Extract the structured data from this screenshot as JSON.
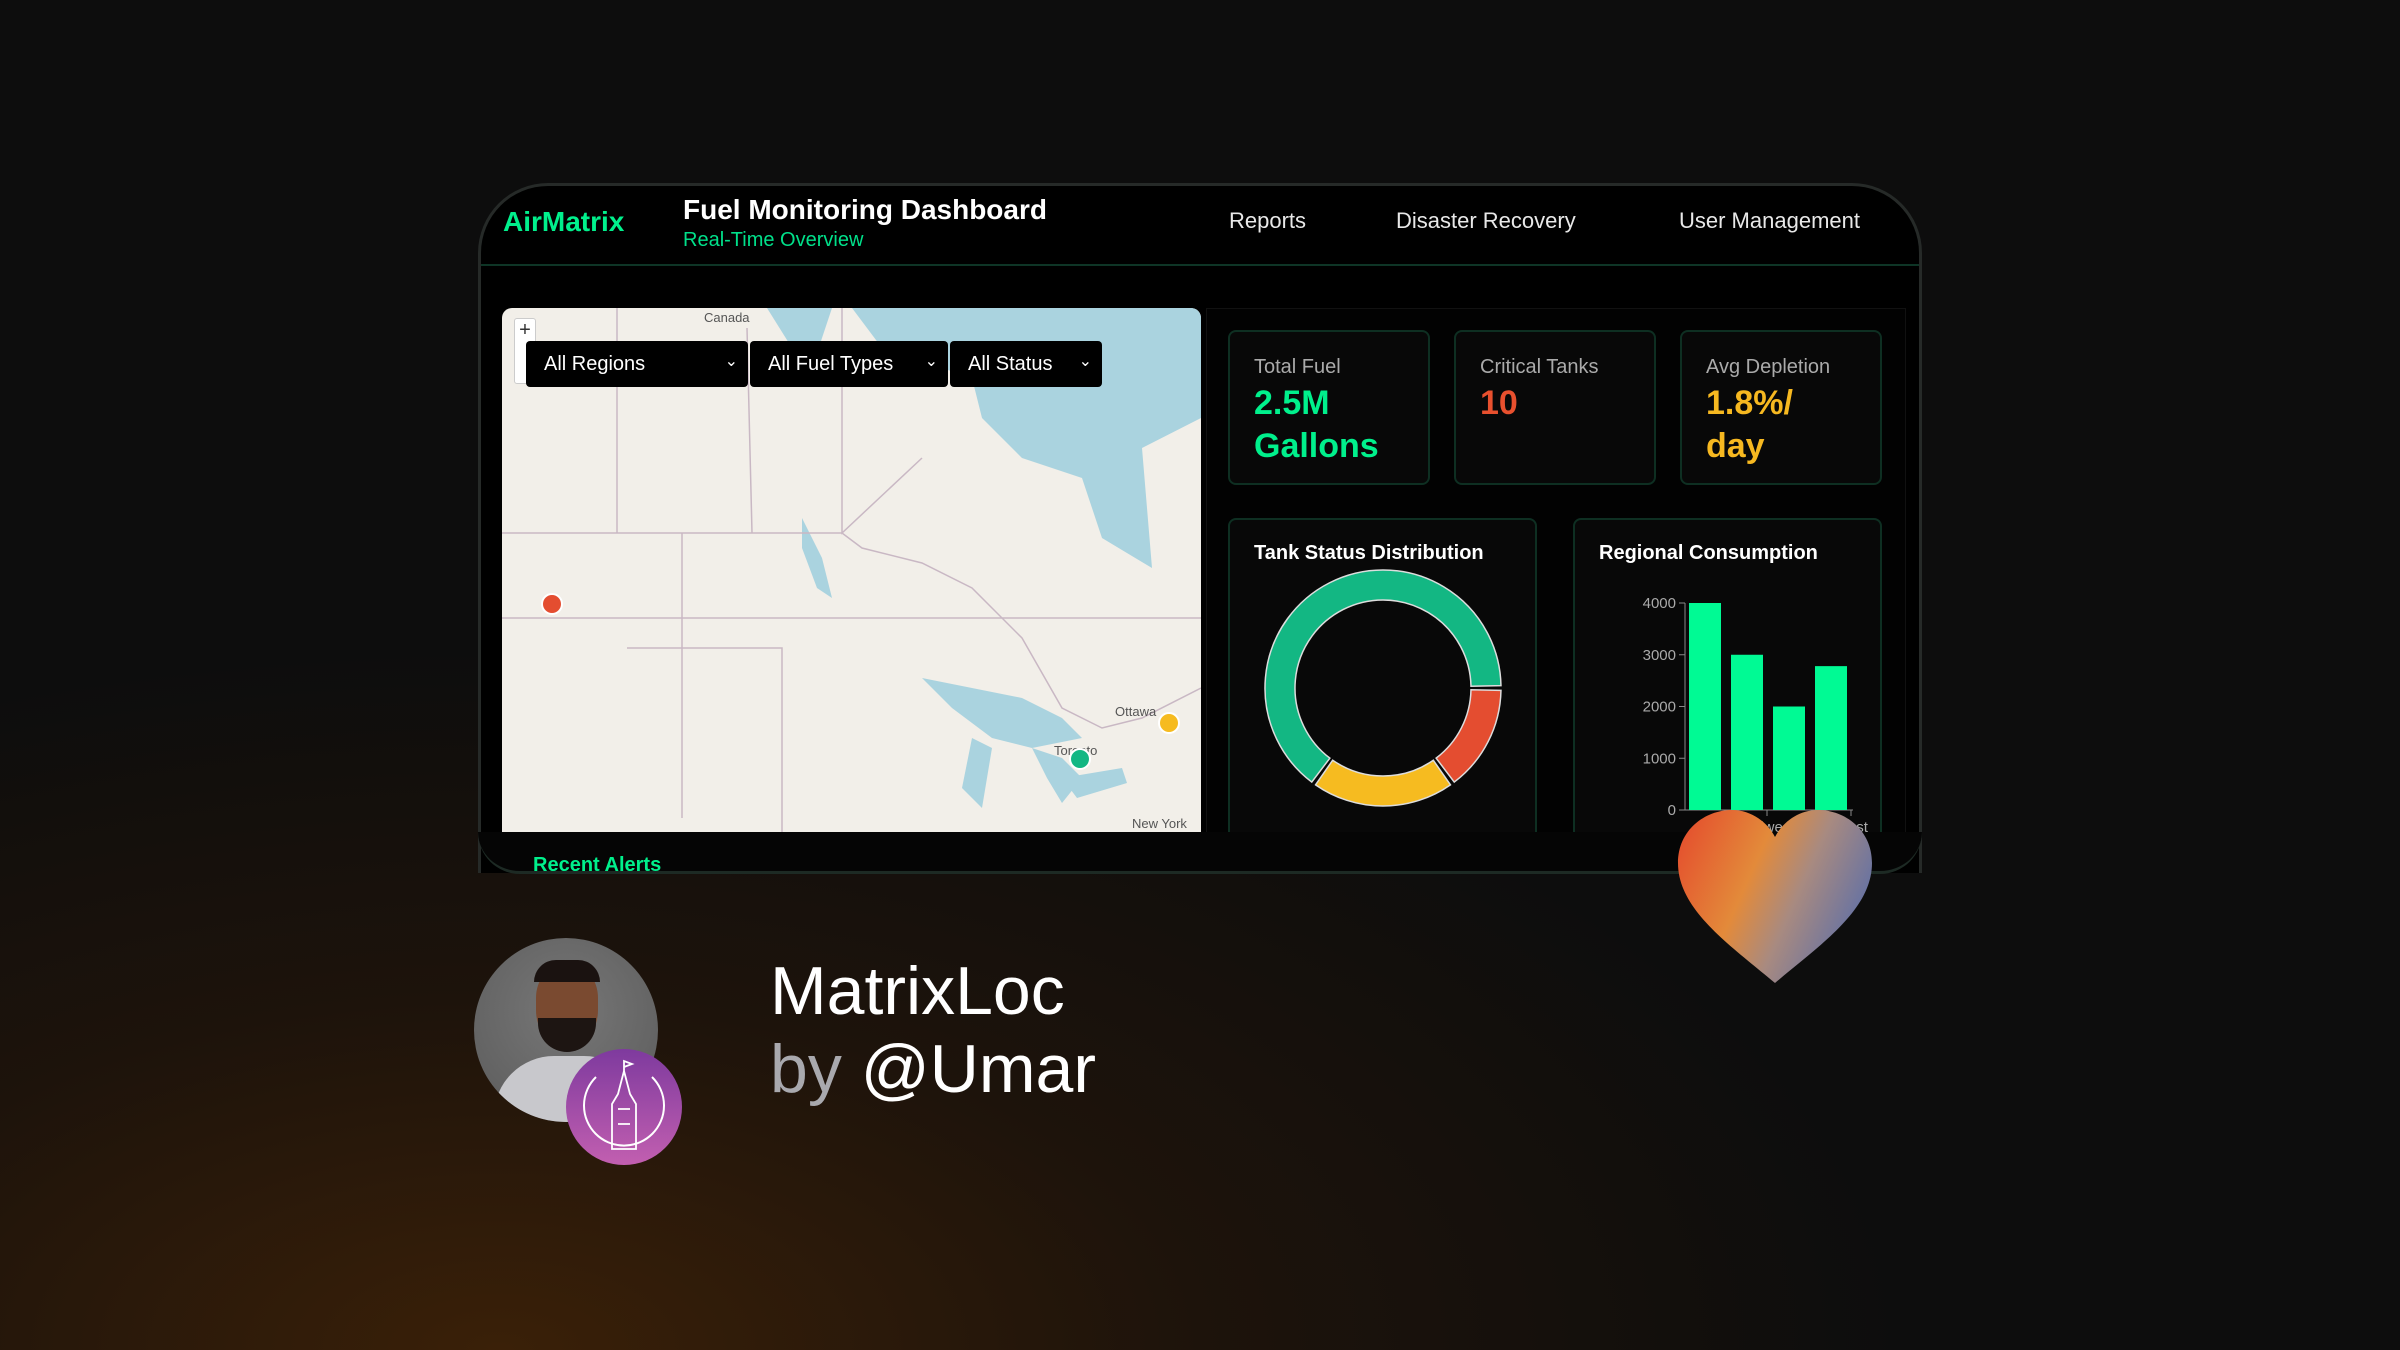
{
  "header": {
    "logo": "AirMatrix",
    "title": "Fuel Monitoring Dashboard",
    "subtitle": "Real-Time Overview",
    "nav": [
      {
        "label": "Reports"
      },
      {
        "label": "Disaster Recovery"
      },
      {
        "label": "User Management"
      }
    ]
  },
  "filters": [
    {
      "value": "All Regions"
    },
    {
      "value": "All Fuel Types"
    },
    {
      "value": "All Status"
    }
  ],
  "map": {
    "labels": {
      "country": "Canada",
      "city1": "Ottawa",
      "city2": "Toronto",
      "city3": "New York"
    },
    "markers": [
      {
        "status": "critical",
        "color": "#e44d30"
      },
      {
        "status": "warning",
        "color": "#f6bb20"
      },
      {
        "status": "normal",
        "color": "#13b783"
      }
    ],
    "zoom_in": "+"
  },
  "stats": [
    {
      "label": "Total Fuel",
      "value": "2.5M Gallons",
      "color": "#00f08c"
    },
    {
      "label": "Critical Tanks",
      "value": "10",
      "color": "#e8502e"
    },
    {
      "label": "Avg Depletion",
      "value": "1.8%/ day",
      "color": "#f6b820"
    }
  ],
  "chart_data": [
    {
      "type": "pie",
      "title": "Tank Status Distribution",
      "donut": true,
      "values": [
        65,
        15,
        20
      ],
      "colors": [
        "#13b783",
        "#e44d30",
        "#f6bb20"
      ]
    },
    {
      "type": "bar",
      "title": "Regional Consumption",
      "categories": [
        "",
        "Midwest",
        "",
        "West"
      ],
      "values": [
        4000,
        3000,
        2000,
        2780
      ],
      "yticks": [
        0,
        1000,
        2000,
        3000,
        4000
      ],
      "ylim": [
        0,
        4000
      ],
      "color": "#00fa94"
    }
  ],
  "alerts": {
    "label": "Recent Alerts"
  },
  "credit": {
    "project": "MatrixLoc",
    "by": "by",
    "author": "@Umar"
  }
}
